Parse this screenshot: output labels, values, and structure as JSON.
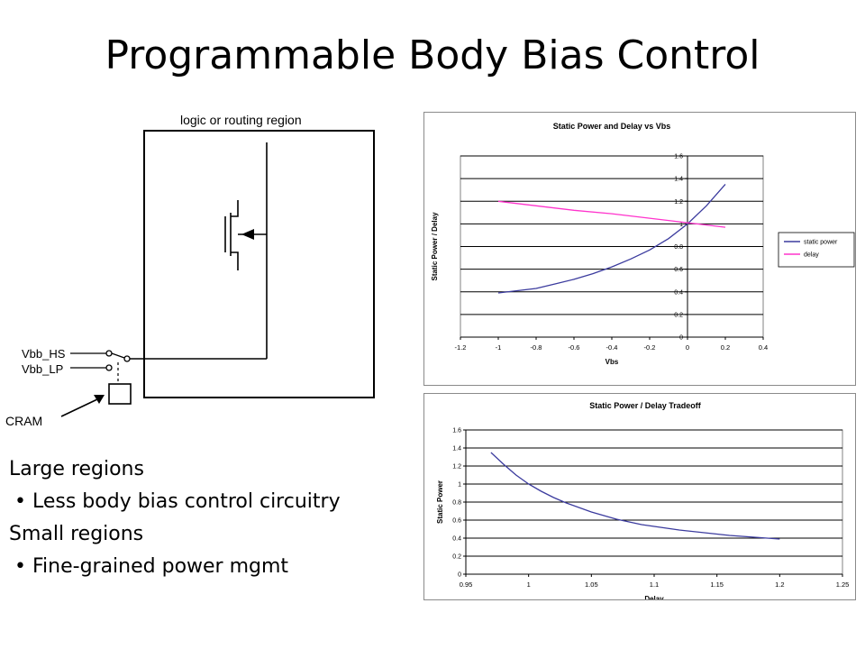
{
  "slide": {
    "title": "Programmable Body Bias Control"
  },
  "diagram": {
    "region_label": "logic or routing region",
    "vbb_hs_label": "Vbb_HS",
    "vbb_lp_label": "Vbb_LP",
    "cram_label": "CRAM"
  },
  "body_text": {
    "items": [
      {
        "text": "Large regions",
        "bullet": false
      },
      {
        "text": "Less body bias control circuitry",
        "bullet": true
      },
      {
        "text": "Small regions",
        "bullet": false
      },
      {
        "text": "Fine-grained power mgmt",
        "bullet": true
      }
    ]
  },
  "colors": {
    "static_power": "#3b3b9e",
    "delay": "#ff33cc"
  },
  "chart_data": [
    {
      "type": "line",
      "title": "Static Power and Delay vs Vbs",
      "xlabel": "Vbs",
      "ylabel": "Static Power / Delay",
      "xlim": [
        -1.2,
        0.4
      ],
      "ylim": [
        0,
        1.6
      ],
      "xticks": [
        "-1.2",
        "-1",
        "-0.8",
        "-0.6",
        "-0.4",
        "-0.2",
        "0",
        "0.2",
        "0.4"
      ],
      "yticks": [
        "0",
        "0.2",
        "0.4",
        "0.6",
        "0.8",
        "1",
        "1.2",
        "1.4",
        "1.6"
      ],
      "grid": true,
      "legend_position": "right",
      "series": [
        {
          "name": "static power",
          "color": "#3b3b9e",
          "x": [
            -1,
            -0.9,
            -0.8,
            -0.7,
            -0.6,
            -0.5,
            -0.4,
            -0.3,
            -0.2,
            -0.1,
            0,
            0.1,
            0.2
          ],
          "y": [
            0.39,
            0.41,
            0.43,
            0.47,
            0.51,
            0.56,
            0.62,
            0.69,
            0.77,
            0.87,
            1.0,
            1.16,
            1.35
          ]
        },
        {
          "name": "delay",
          "color": "#ff33cc",
          "x": [
            -1,
            -0.8,
            -0.6,
            -0.4,
            -0.2,
            0,
            0.2
          ],
          "y": [
            1.2,
            1.16,
            1.12,
            1.09,
            1.05,
            1.01,
            0.97
          ]
        }
      ]
    },
    {
      "type": "line",
      "title": "Static Power / Delay Tradeoff",
      "xlabel": "Delay",
      "ylabel": "Static Power",
      "xlim": [
        0.95,
        1.25
      ],
      "ylim": [
        0,
        1.6
      ],
      "xticks": [
        "0.95",
        "1",
        "1.05",
        "1.1",
        "1.15",
        "1.2",
        "1.25"
      ],
      "yticks": [
        "0",
        "0.2",
        "0.4",
        "0.6",
        "0.8",
        "1",
        "1.2",
        "1.4",
        "1.6"
      ],
      "grid": true,
      "series": [
        {
          "color": "#3b3b9e",
          "x": [
            0.97,
            0.98,
            0.99,
            1.0,
            1.01,
            1.02,
            1.03,
            1.05,
            1.07,
            1.09,
            1.12,
            1.16,
            1.2
          ],
          "y": [
            1.35,
            1.22,
            1.1,
            1.0,
            0.92,
            0.85,
            0.79,
            0.69,
            0.61,
            0.55,
            0.49,
            0.43,
            0.39
          ]
        }
      ]
    }
  ]
}
